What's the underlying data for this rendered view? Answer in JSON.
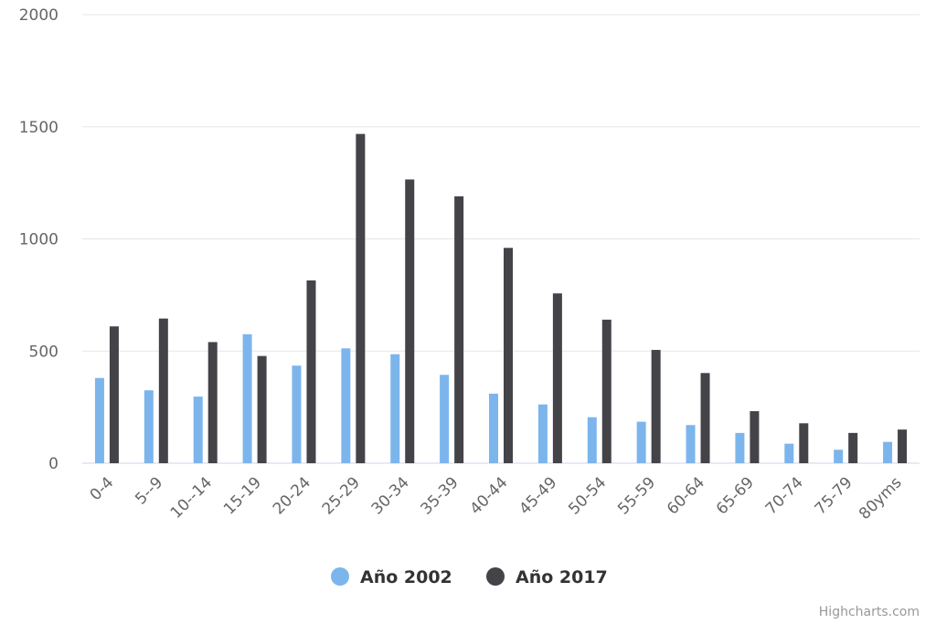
{
  "chart_data": {
    "type": "bar",
    "categories": [
      "0-4",
      "5--9",
      "10--14",
      "15-19",
      "20-24",
      "25-29",
      "30-34",
      "35-39",
      "40-44",
      "45-49",
      "50-54",
      "55-59",
      "60-64",
      "65-69",
      "70-74",
      "75-79",
      "80yms"
    ],
    "series": [
      {
        "name": "Año 2002",
        "color": "#7cb5ec",
        "values": [
          380,
          325,
          297,
          575,
          435,
          512,
          486,
          394,
          310,
          262,
          205,
          185,
          170,
          135,
          87,
          60,
          95
        ]
      },
      {
        "name": "Año 2017",
        "color": "#434348",
        "values": [
          610,
          645,
          540,
          478,
          815,
          1468,
          1265,
          1190,
          960,
          757,
          640,
          505,
          402,
          232,
          178,
          135,
          150
        ]
      }
    ],
    "title": "",
    "xlabel": "",
    "ylabel": "",
    "ylim": [
      0,
      2000
    ],
    "yticks": [
      0,
      500,
      1000,
      1500,
      2000
    ],
    "grid": true,
    "legend_position": "bottom-center"
  },
  "credits": "Highcharts.com"
}
